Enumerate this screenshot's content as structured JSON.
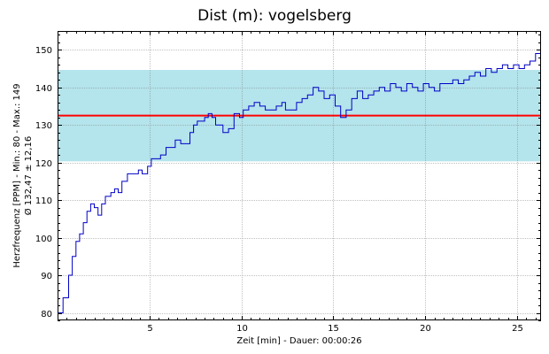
{
  "chart_data": {
    "type": "line",
    "title": "Dist (m): vogelsberg",
    "xlabel": "Zeit [min] - Dauer: 00:00:26",
    "ylabel_line1": "Herzfrequenz [PPM] - Min.: 80 - Max.: 149",
    "ylabel_line2": "Ø 132,47 ± 12,16",
    "xlim": [
      0,
      26.3
    ],
    "ylim": [
      78,
      155
    ],
    "x_ticks": [
      5,
      10,
      15,
      20,
      25
    ],
    "y_ticks": [
      80,
      90,
      100,
      110,
      120,
      130,
      140,
      150
    ],
    "mean": 132.47,
    "std": 12.16,
    "min": 80,
    "max": 149,
    "band": [
      120.31,
      144.63
    ],
    "colors": {
      "line": "#0000c8",
      "mean_line": "#ff0000",
      "band": "#b4e4ec",
      "grid": "#808080"
    },
    "series": [
      {
        "values": [
          [
            0,
            80
          ],
          [
            0.3,
            84
          ],
          [
            0.6,
            90
          ],
          [
            0.8,
            95
          ],
          [
            1.0,
            99
          ],
          [
            1.2,
            101
          ],
          [
            1.4,
            104
          ],
          [
            1.6,
            107
          ],
          [
            1.8,
            109
          ],
          [
            2.0,
            108
          ],
          [
            2.2,
            106
          ],
          [
            2.4,
            109
          ],
          [
            2.6,
            111
          ],
          [
            2.9,
            112
          ],
          [
            3.1,
            113
          ],
          [
            3.3,
            112
          ],
          [
            3.5,
            115
          ],
          [
            3.8,
            117
          ],
          [
            4.1,
            117
          ],
          [
            4.4,
            118
          ],
          [
            4.6,
            117
          ],
          [
            4.9,
            119
          ],
          [
            5.1,
            121
          ],
          [
            5.3,
            121
          ],
          [
            5.6,
            122
          ],
          [
            5.9,
            124
          ],
          [
            6.1,
            124
          ],
          [
            6.4,
            126
          ],
          [
            6.7,
            125
          ],
          [
            6.9,
            125
          ],
          [
            7.2,
            128
          ],
          [
            7.4,
            130
          ],
          [
            7.6,
            131
          ],
          [
            7.8,
            131
          ],
          [
            8.0,
            132
          ],
          [
            8.2,
            133
          ],
          [
            8.4,
            132
          ],
          [
            8.6,
            130
          ],
          [
            8.8,
            130
          ],
          [
            9.0,
            128
          ],
          [
            9.3,
            129
          ],
          [
            9.6,
            133
          ],
          [
            9.9,
            132
          ],
          [
            10.1,
            134
          ],
          [
            10.4,
            135
          ],
          [
            10.7,
            136
          ],
          [
            11.0,
            135
          ],
          [
            11.3,
            134
          ],
          [
            11.6,
            134
          ],
          [
            11.9,
            135
          ],
          [
            12.2,
            136
          ],
          [
            12.4,
            134
          ],
          [
            12.7,
            134
          ],
          [
            13.0,
            136
          ],
          [
            13.3,
            137
          ],
          [
            13.6,
            138
          ],
          [
            13.9,
            140
          ],
          [
            14.2,
            139
          ],
          [
            14.5,
            137
          ],
          [
            14.8,
            138
          ],
          [
            15.1,
            135
          ],
          [
            15.4,
            132
          ],
          [
            15.7,
            134
          ],
          [
            16.0,
            137
          ],
          [
            16.3,
            139
          ],
          [
            16.6,
            137
          ],
          [
            16.9,
            138
          ],
          [
            17.2,
            139
          ],
          [
            17.5,
            140
          ],
          [
            17.8,
            139
          ],
          [
            18.1,
            141
          ],
          [
            18.4,
            140
          ],
          [
            18.7,
            139
          ],
          [
            19.0,
            141
          ],
          [
            19.3,
            140
          ],
          [
            19.6,
            139
          ],
          [
            19.9,
            141
          ],
          [
            20.2,
            140
          ],
          [
            20.5,
            139
          ],
          [
            20.8,
            141
          ],
          [
            21.2,
            141
          ],
          [
            21.5,
            142
          ],
          [
            21.8,
            141
          ],
          [
            22.1,
            142
          ],
          [
            22.4,
            143
          ],
          [
            22.7,
            144
          ],
          [
            23.0,
            143
          ],
          [
            23.3,
            145
          ],
          [
            23.6,
            144
          ],
          [
            23.9,
            145
          ],
          [
            24.2,
            146
          ],
          [
            24.5,
            145
          ],
          [
            24.8,
            146
          ],
          [
            25.1,
            145
          ],
          [
            25.4,
            146
          ],
          [
            25.7,
            147
          ],
          [
            26.0,
            149
          ],
          [
            26.3,
            149
          ]
        ]
      }
    ]
  }
}
